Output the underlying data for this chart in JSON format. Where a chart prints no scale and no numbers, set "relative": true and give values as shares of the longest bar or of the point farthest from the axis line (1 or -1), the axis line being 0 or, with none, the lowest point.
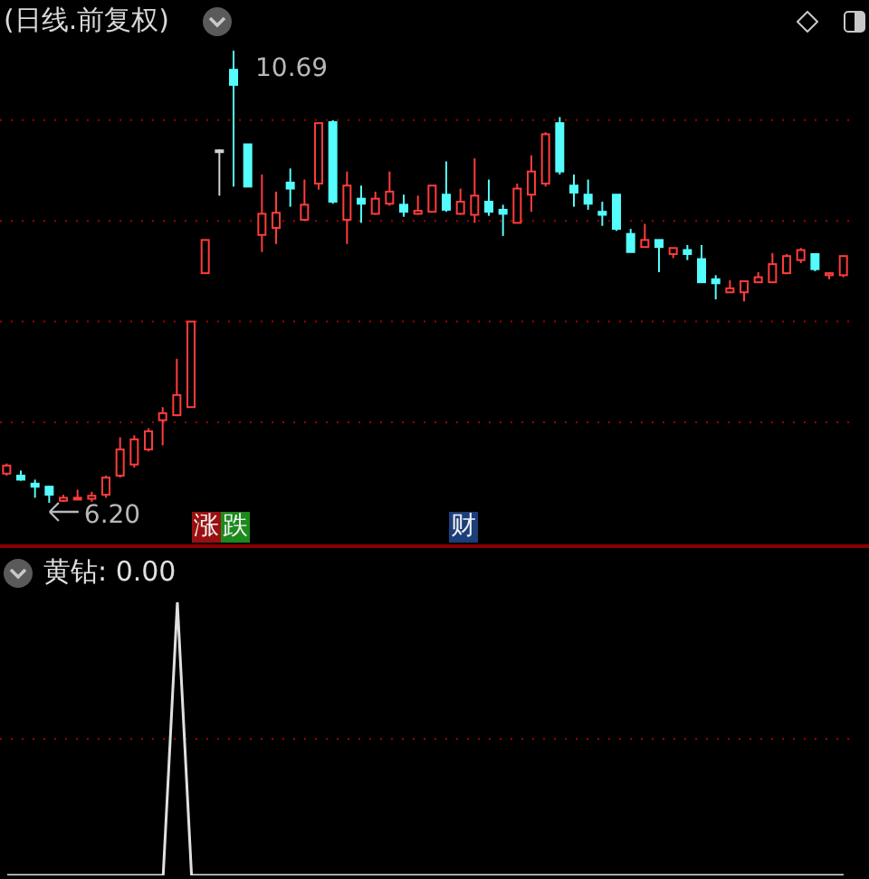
{
  "chart_data": [
    {
      "type": "candlestick",
      "title": "(日线.前复权)",
      "grid": "y",
      "tick_labels": false,
      "categories": [
        null,
        null,
        null,
        null,
        null,
        null,
        null,
        null,
        null,
        null,
        null,
        null,
        null,
        null,
        null,
        null,
        null,
        null,
        null,
        null,
        null,
        null,
        null,
        null,
        null,
        null,
        null,
        null,
        null,
        null,
        null,
        null,
        null,
        null,
        null,
        null,
        null,
        null,
        null,
        null,
        null,
        null,
        null,
        null,
        null,
        null,
        null,
        null,
        null,
        null,
        null,
        null,
        null,
        null,
        null,
        null,
        null,
        null,
        null,
        null
      ],
      "ohlc": [
        [
          6.49,
          6.59,
          6.47,
          6.57
        ],
        [
          6.47,
          6.52,
          6.42,
          6.43
        ],
        [
          6.39,
          6.43,
          6.25,
          6.36
        ],
        [
          6.36,
          6.37,
          6.2,
          6.28
        ],
        [
          6.22,
          6.28,
          6.21,
          6.25
        ],
        [
          6.24,
          6.33,
          6.24,
          6.25
        ],
        [
          6.24,
          6.31,
          6.21,
          6.27
        ],
        [
          6.28,
          6.47,
          6.25,
          6.45
        ],
        [
          6.47,
          6.85,
          6.45,
          6.73
        ],
        [
          6.58,
          6.87,
          6.55,
          6.83
        ],
        [
          6.73,
          6.94,
          6.71,
          6.91
        ],
        [
          7.02,
          7.15,
          6.77,
          7.09
        ],
        [
          7.07,
          7.63,
          7.06,
          7.27
        ],
        [
          7.15,
          8.0,
          7.15,
          8.0
        ],
        [
          8.48,
          8.81,
          8.48,
          8.81
        ],
        [
          9.7,
          9.71,
          9.25,
          9.7
        ],
        [
          10.5,
          10.69,
          9.34,
          10.35
        ],
        [
          9.76,
          9.76,
          9.34,
          9.34
        ],
        [
          8.86,
          9.46,
          8.69,
          9.07
        ],
        [
          8.93,
          9.29,
          8.77,
          9.08
        ],
        [
          9.38,
          9.52,
          9.14,
          9.32
        ],
        [
          9.01,
          9.41,
          9.01,
          9.16
        ],
        [
          9.37,
          9.97,
          9.31,
          9.97
        ],
        [
          9.98,
          10.0,
          9.17,
          9.19
        ],
        [
          9.01,
          9.49,
          8.77,
          9.35
        ],
        [
          9.22,
          9.35,
          8.98,
          9.17
        ],
        [
          9.07,
          9.29,
          9.06,
          9.22
        ],
        [
          9.17,
          9.49,
          9.15,
          9.29
        ],
        [
          9.16,
          9.26,
          9.04,
          9.09
        ],
        [
          9.07,
          9.25,
          9.06,
          9.1
        ],
        [
          9.09,
          9.35,
          9.09,
          9.35
        ],
        [
          9.26,
          9.59,
          9.09,
          9.11
        ],
        [
          9.07,
          9.32,
          9.06,
          9.19
        ],
        [
          9.06,
          9.62,
          8.98,
          9.25
        ],
        [
          9.19,
          9.41,
          9.05,
          9.09
        ],
        [
          9.11,
          9.16,
          8.85,
          9.07
        ],
        [
          8.98,
          9.37,
          8.98,
          9.32
        ],
        [
          9.26,
          9.65,
          9.09,
          9.49
        ],
        [
          9.37,
          9.88,
          9.34,
          9.86
        ],
        [
          9.97,
          10.03,
          9.46,
          9.49
        ],
        [
          9.35,
          9.46,
          9.14,
          9.28
        ],
        [
          9.26,
          9.41,
          9.11,
          9.17
        ],
        [
          9.09,
          9.19,
          8.95,
          9.06
        ],
        [
          9.26,
          9.26,
          8.9,
          8.92
        ],
        [
          8.87,
          8.92,
          8.69,
          8.69
        ],
        [
          8.74,
          8.97,
          8.74,
          8.81
        ],
        [
          8.81,
          8.81,
          8.49,
          8.74
        ],
        [
          8.67,
          8.73,
          8.63,
          8.73
        ],
        [
          8.71,
          8.76,
          8.61,
          8.67
        ],
        [
          8.62,
          8.76,
          8.39,
          8.39
        ],
        [
          8.42,
          8.46,
          8.22,
          8.38
        ],
        [
          8.29,
          8.41,
          8.29,
          8.33
        ],
        [
          8.29,
          8.4,
          8.2,
          8.4
        ],
        [
          8.39,
          8.49,
          8.39,
          8.44
        ],
        [
          8.39,
          8.68,
          8.39,
          8.57
        ],
        [
          8.48,
          8.67,
          8.47,
          8.65
        ],
        [
          8.61,
          8.73,
          8.58,
          8.71
        ],
        [
          8.67,
          8.67,
          8.5,
          8.52
        ],
        [
          8.46,
          8.49,
          8.42,
          8.48
        ],
        [
          8.46,
          8.65,
          8.44,
          8.65
        ]
      ],
      "colors": [
        "#ff3c3c",
        "#54fcfc",
        "#54fcfc",
        "#54fcfc",
        "#ff3c3c",
        "#ff3c3c",
        "#ff3c3c",
        "#ff3c3c",
        "#ff3c3c",
        "#ff3c3c",
        "#ff3c3c",
        "#ff3c3c",
        "#ff3c3c",
        "#ff3c3c",
        "#ff3c3c",
        "#d0d0d0",
        "#54fcfc",
        "#54fcfc",
        "#ff3c3c",
        "#ff3c3c",
        "#54fcfc",
        "#ff3c3c",
        "#ff3c3c",
        "#54fcfc",
        "#ff3c3c",
        "#54fcfc",
        "#ff3c3c",
        "#ff3c3c",
        "#54fcfc",
        "#ff3c3c",
        "#ff3c3c",
        "#54fcfc",
        "#ff3c3c",
        "#ff3c3c",
        "#54fcfc",
        "#54fcfc",
        "#ff3c3c",
        "#ff3c3c",
        "#ff3c3c",
        "#54fcfc",
        "#54fcfc",
        "#54fcfc",
        "#54fcfc",
        "#54fcfc",
        "#54fcfc",
        "#ff3c3c",
        "#54fcfc",
        "#ff3c3c",
        "#54fcfc",
        "#54fcfc",
        "#54fcfc",
        "#ff3c3c",
        "#ff3c3c",
        "#ff3c3c",
        "#ff3c3c",
        "#ff3c3c",
        "#ff3c3c",
        "#54fcfc",
        "#ff3c3c",
        "#ff3c3c"
      ],
      "yticks": [
        {
          "value": 7,
          "label": null
        },
        {
          "value": 8,
          "label": null
        },
        {
          "value": 9,
          "label": null
        },
        {
          "value": 10,
          "label": null
        }
      ],
      "annotations": [
        "10.69",
        {
          "text": "6.20",
          "y": 6.2
        },
        "涨",
        "跌",
        "财"
      ]
    },
    {
      "type": "line",
      "title": "黄钻: 0.00",
      "relative": true,
      "ref_lines": [
        {
          "axis": "y",
          "value": 0.5,
          "color": "#a00000",
          "line_style": "dotted"
        }
      ],
      "categories": [
        null,
        null,
        null,
        null,
        null,
        null,
        null,
        null,
        null,
        null,
        null,
        null,
        null,
        null,
        null,
        null,
        null,
        null,
        null,
        null,
        null,
        null,
        null,
        null,
        null,
        null,
        null,
        null,
        null,
        null,
        null,
        null,
        null,
        null,
        null,
        null,
        null,
        null,
        null,
        null,
        null,
        null,
        null,
        null,
        null,
        null,
        null,
        null,
        null,
        null,
        null,
        null,
        null,
        null,
        null,
        null,
        null,
        null,
        null,
        null
      ],
      "series": [
        {
          "color": "#e0e0e0",
          "values": [
            0,
            0,
            0,
            0,
            0,
            0,
            0,
            0,
            0,
            0,
            0,
            0,
            1,
            0,
            0,
            0,
            0,
            0,
            0,
            0,
            0,
            0,
            0,
            0,
            0,
            0,
            0,
            0,
            0,
            0,
            0,
            0,
            0,
            0,
            0,
            0,
            0,
            0,
            0,
            0,
            0,
            0,
            0,
            0,
            0,
            0,
            0,
            0,
            0,
            0,
            0,
            0,
            0,
            0,
            0,
            0,
            0,
            0,
            0,
            0
          ]
        }
      ]
    }
  ]
}
